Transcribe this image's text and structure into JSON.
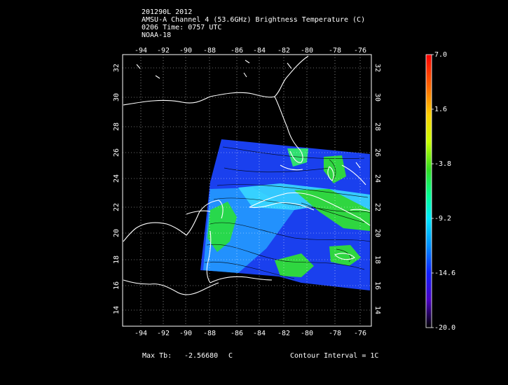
{
  "header": {
    "line1": "201290L 2012",
    "line2": "AMSU-A Channel 4 (53.6GHz) Brightness Temperature (C)",
    "line3": "0206 Time: 0757 UTC",
    "line4": "NOAA-18"
  },
  "axes": {
    "lon_ticks": [
      "-94",
      "-92",
      "-90",
      "-88",
      "-86",
      "-84",
      "-82",
      "-80",
      "-78",
      "-76"
    ],
    "lat_ticks": [
      "14",
      "16",
      "18",
      "20",
      "22",
      "24",
      "26",
      "28",
      "30",
      "32"
    ],
    "lon_range": [
      -95.5,
      -75
    ],
    "lat_range": [
      13,
      33.5
    ]
  },
  "footer": {
    "max_label": "Max Tb:",
    "max_value": "-2.56680",
    "max_unit": "C",
    "contour": "Contour Interval = 1C"
  },
  "colorbar": {
    "labels": [
      "7.0",
      "1.6",
      "-3.8",
      "-9.2",
      "-14.6",
      "-20.0"
    ],
    "range": [
      -20.0,
      7.0
    ]
  },
  "colors": {
    "background": "#000000",
    "coast": "#ffffff",
    "grid": "#ffffff",
    "swath_main": "#1e46f0"
  }
}
